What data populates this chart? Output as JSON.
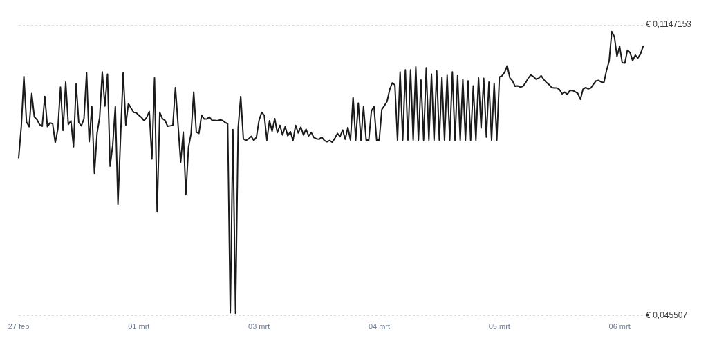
{
  "chart_data": {
    "type": "line",
    "categories": [
      "27 feb",
      null,
      null,
      null,
      null,
      null,
      null,
      null,
      null,
      null,
      null,
      null,
      null,
      null,
      null,
      null,
      null,
      null,
      null,
      null,
      null,
      null,
      null,
      null,
      null,
      null,
      null,
      null,
      null,
      null,
      null,
      null,
      null,
      null,
      null,
      null,
      null,
      null,
      null,
      null,
      null,
      null,
      null,
      null,
      null,
      null,
      "01 mrt",
      null,
      null,
      null,
      null,
      null,
      null,
      null,
      null,
      null,
      null,
      null,
      null,
      null,
      null,
      null,
      null,
      null,
      null,
      null,
      null,
      null,
      null,
      null,
      null,
      null,
      null,
      null,
      null,
      null,
      null,
      null,
      null,
      null,
      null,
      null,
      null,
      null,
      null,
      null,
      null,
      null,
      null,
      null,
      null,
      null,
      "03 mrt",
      null,
      null,
      null,
      null,
      null,
      null,
      null,
      null,
      null,
      null,
      null,
      null,
      null,
      null,
      null,
      null,
      null,
      null,
      null,
      null,
      null,
      null,
      null,
      null,
      null,
      null,
      null,
      null,
      null,
      null,
      null,
      null,
      null,
      null,
      null,
      null,
      null,
      null,
      null,
      null,
      null,
      null,
      null,
      null,
      null,
      "04 mrt",
      null,
      null,
      null,
      null,
      null,
      null,
      null,
      null,
      null,
      null,
      null,
      null,
      null,
      null,
      null,
      null,
      null,
      null,
      null,
      null,
      null,
      null,
      null,
      null,
      null,
      null,
      null,
      null,
      null,
      null,
      null,
      null,
      null,
      null,
      null,
      null,
      null,
      null,
      null,
      null,
      null,
      null,
      null,
      null,
      null,
      "05 mrt",
      null,
      null,
      null,
      null,
      null,
      null,
      null,
      null,
      null,
      null,
      null,
      null,
      null,
      null,
      null,
      null,
      null,
      null,
      null,
      null,
      null,
      null,
      null,
      null,
      null,
      null,
      null,
      null,
      null,
      null,
      null,
      null,
      null,
      null,
      null,
      null,
      null,
      null,
      null,
      null,
      null,
      null,
      null,
      null,
      null,
      "06 mrt",
      null,
      null,
      null,
      null,
      null,
      null,
      null,
      null,
      null
    ],
    "values": [
      0.0831,
      0.0905,
      0.1024,
      0.0916,
      0.0905,
      0.0984,
      0.0928,
      0.0922,
      0.091,
      0.0906,
      0.0977,
      0.0905,
      0.0914,
      0.0912,
      0.0867,
      0.0899,
      0.0999,
      0.0896,
      0.1011,
      0.091,
      0.0919,
      0.0857,
      0.1007,
      0.0915,
      0.0907,
      0.0924,
      0.1034,
      0.0869,
      0.0953,
      0.0794,
      0.0889,
      0.0927,
      0.1035,
      0.0954,
      0.103,
      0.0811,
      0.0861,
      0.0953,
      0.072,
      0.088,
      0.1034,
      0.0909,
      0.096,
      0.0949,
      0.0939,
      0.0938,
      0.0932,
      0.0927,
      0.0919,
      0.0927,
      0.0941,
      0.0828,
      0.1021,
      0.0702,
      0.0939,
      0.0924,
      0.092,
      0.0906,
      0.0907,
      0.0908,
      0.0998,
      0.091,
      0.082,
      0.0892,
      0.0743,
      0.0856,
      0.0889,
      0.0987,
      0.0892,
      0.0889,
      0.0932,
      0.0923,
      0.0923,
      0.0928,
      0.092,
      0.092,
      0.0919,
      0.0921,
      0.092,
      0.0915,
      0.0912,
      0.0462,
      0.0898,
      0.0461,
      0.0902,
      0.0977,
      0.0876,
      0.0872,
      0.0876,
      0.0882,
      0.0872,
      0.088,
      0.092,
      0.0939,
      0.0932,
      0.0873,
      0.0919,
      0.0894,
      0.0924,
      0.0891,
      0.0908,
      0.0885,
      0.0905,
      0.0883,
      0.0893,
      0.0872,
      0.0908,
      0.089,
      0.0904,
      0.0885,
      0.0899,
      0.0883,
      0.0891,
      0.0879,
      0.0876,
      0.0875,
      0.088,
      0.0872,
      0.0869,
      0.0872,
      0.0868,
      0.0877,
      0.0889,
      0.0881,
      0.0897,
      0.0875,
      0.0903,
      0.0873,
      0.0975,
      0.0873,
      0.0961,
      0.0873,
      0.0953,
      0.0873,
      0.0873,
      0.0942,
      0.0953,
      0.0873,
      0.0873,
      0.0946,
      0.0955,
      0.0965,
      0.0993,
      0.1009,
      0.1004,
      0.0873,
      0.1035,
      0.0873,
      0.104,
      0.0873,
      0.104,
      0.0873,
      0.1047,
      0.0873,
      0.1016,
      0.0873,
      0.1045,
      0.0873,
      0.103,
      0.0873,
      0.1038,
      0.0873,
      0.1022,
      0.0873,
      0.1027,
      0.0873,
      0.1035,
      0.0873,
      0.1026,
      0.0873,
      0.1018,
      0.0873,
      0.1014,
      0.0873,
      0.1002,
      0.0873,
      0.1021,
      0.0902,
      0.102,
      0.088,
      0.1011,
      0.0873,
      0.1008,
      0.0873,
      0.1023,
      0.1026,
      0.1034,
      0.105,
      0.1021,
      0.1014,
      0.1001,
      0.1002,
      0.0999,
      0.1001,
      0.1009,
      0.102,
      0.1028,
      0.1024,
      0.1018,
      0.102,
      0.1026,
      0.1017,
      0.101,
      0.1005,
      0.0998,
      0.0997,
      0.0997,
      0.0993,
      0.0983,
      0.0987,
      0.0982,
      0.0991,
      0.0991,
      0.0988,
      0.0984,
      0.097,
      0.0994,
      0.0998,
      0.0995,
      0.0997,
      0.1006,
      0.1014,
      0.1015,
      0.1011,
      0.101,
      0.1039,
      0.1061,
      0.1131,
      0.1119,
      0.1072,
      0.1096,
      0.1057,
      0.1056,
      0.1087,
      0.1081,
      0.1062,
      0.1075,
      0.1068,
      0.1078,
      0.1096
    ],
    "color": "#1a1a1a",
    "ylim": [
      0.045507,
      0.1147153
    ],
    "yticks": [
      {
        "value": 0.045507,
        "label": "€ 0,045507"
      },
      {
        "value": 0.1147153,
        "label": "€ 0,1147153"
      }
    ],
    "grid": "y"
  }
}
